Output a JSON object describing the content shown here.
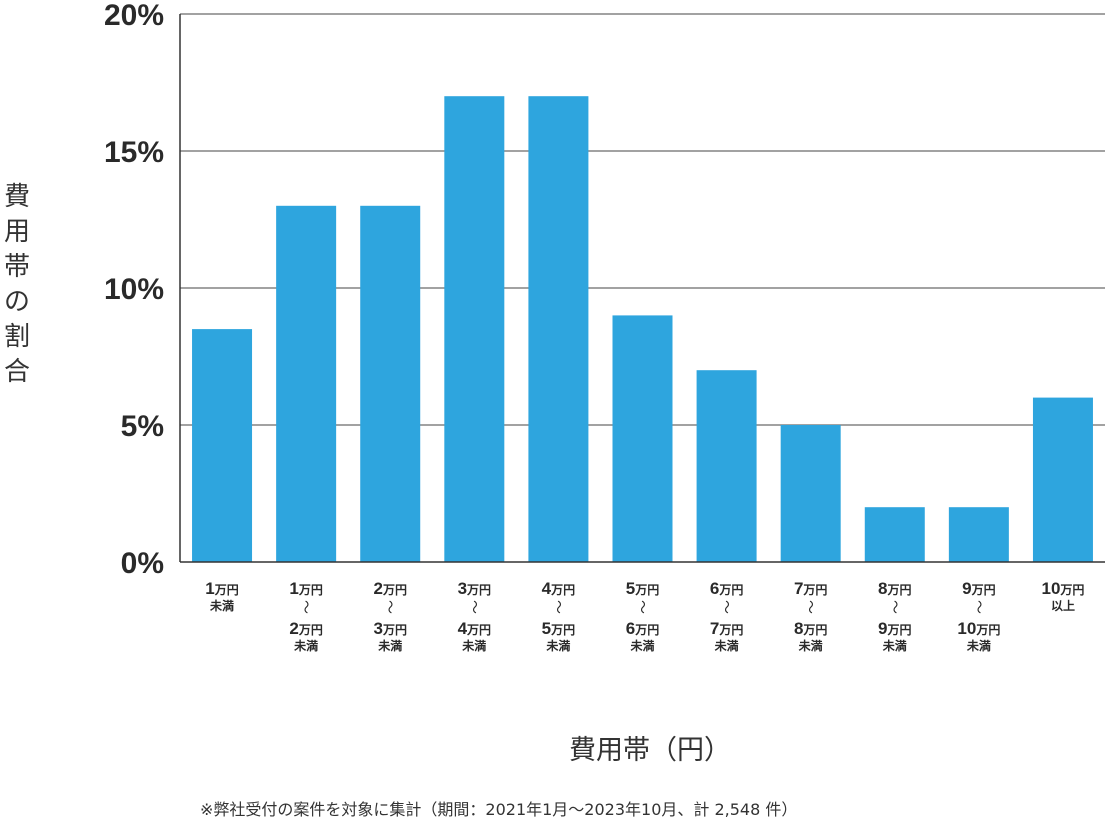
{
  "chart_data": {
    "type": "bar",
    "title": "",
    "ylabel": "費用帯の割合",
    "xlabel": "費用帯（円）",
    "note": "※弊社受付の案件を対象に集計（期間：2021年1月～2023年10月、計 2,548 件）",
    "ylim": [
      0,
      20
    ],
    "yticks": [
      "0%",
      "5%",
      "10%",
      "15%",
      "20%"
    ],
    "ytick_values": [
      0,
      5,
      10,
      15,
      20
    ],
    "grid": true,
    "bar_color": "#2EA5DE",
    "categories": [
      {
        "lines": [
          "1万円",
          "未満"
        ]
      },
      {
        "lines": [
          "1万円",
          "〜",
          "2万円",
          "未満"
        ]
      },
      {
        "lines": [
          "2万円",
          "〜",
          "3万円",
          "未満"
        ]
      },
      {
        "lines": [
          "3万円",
          "〜",
          "4万円",
          "未満"
        ]
      },
      {
        "lines": [
          "4万円",
          "〜",
          "5万円",
          "未満"
        ]
      },
      {
        "lines": [
          "5万円",
          "〜",
          "6万円",
          "未満"
        ]
      },
      {
        "lines": [
          "6万円",
          "〜",
          "7万円",
          "未満"
        ]
      },
      {
        "lines": [
          "7万円",
          "〜",
          "8万円",
          "未満"
        ]
      },
      {
        "lines": [
          "8万円",
          "〜",
          "9万円",
          "未満"
        ]
      },
      {
        "lines": [
          "9万円",
          "〜",
          "10万円",
          "未満"
        ]
      },
      {
        "lines": [
          "10万円",
          "以上"
        ]
      }
    ],
    "values": [
      8.5,
      13,
      13,
      17,
      17,
      9,
      7,
      5,
      2,
      2,
      6
    ]
  }
}
